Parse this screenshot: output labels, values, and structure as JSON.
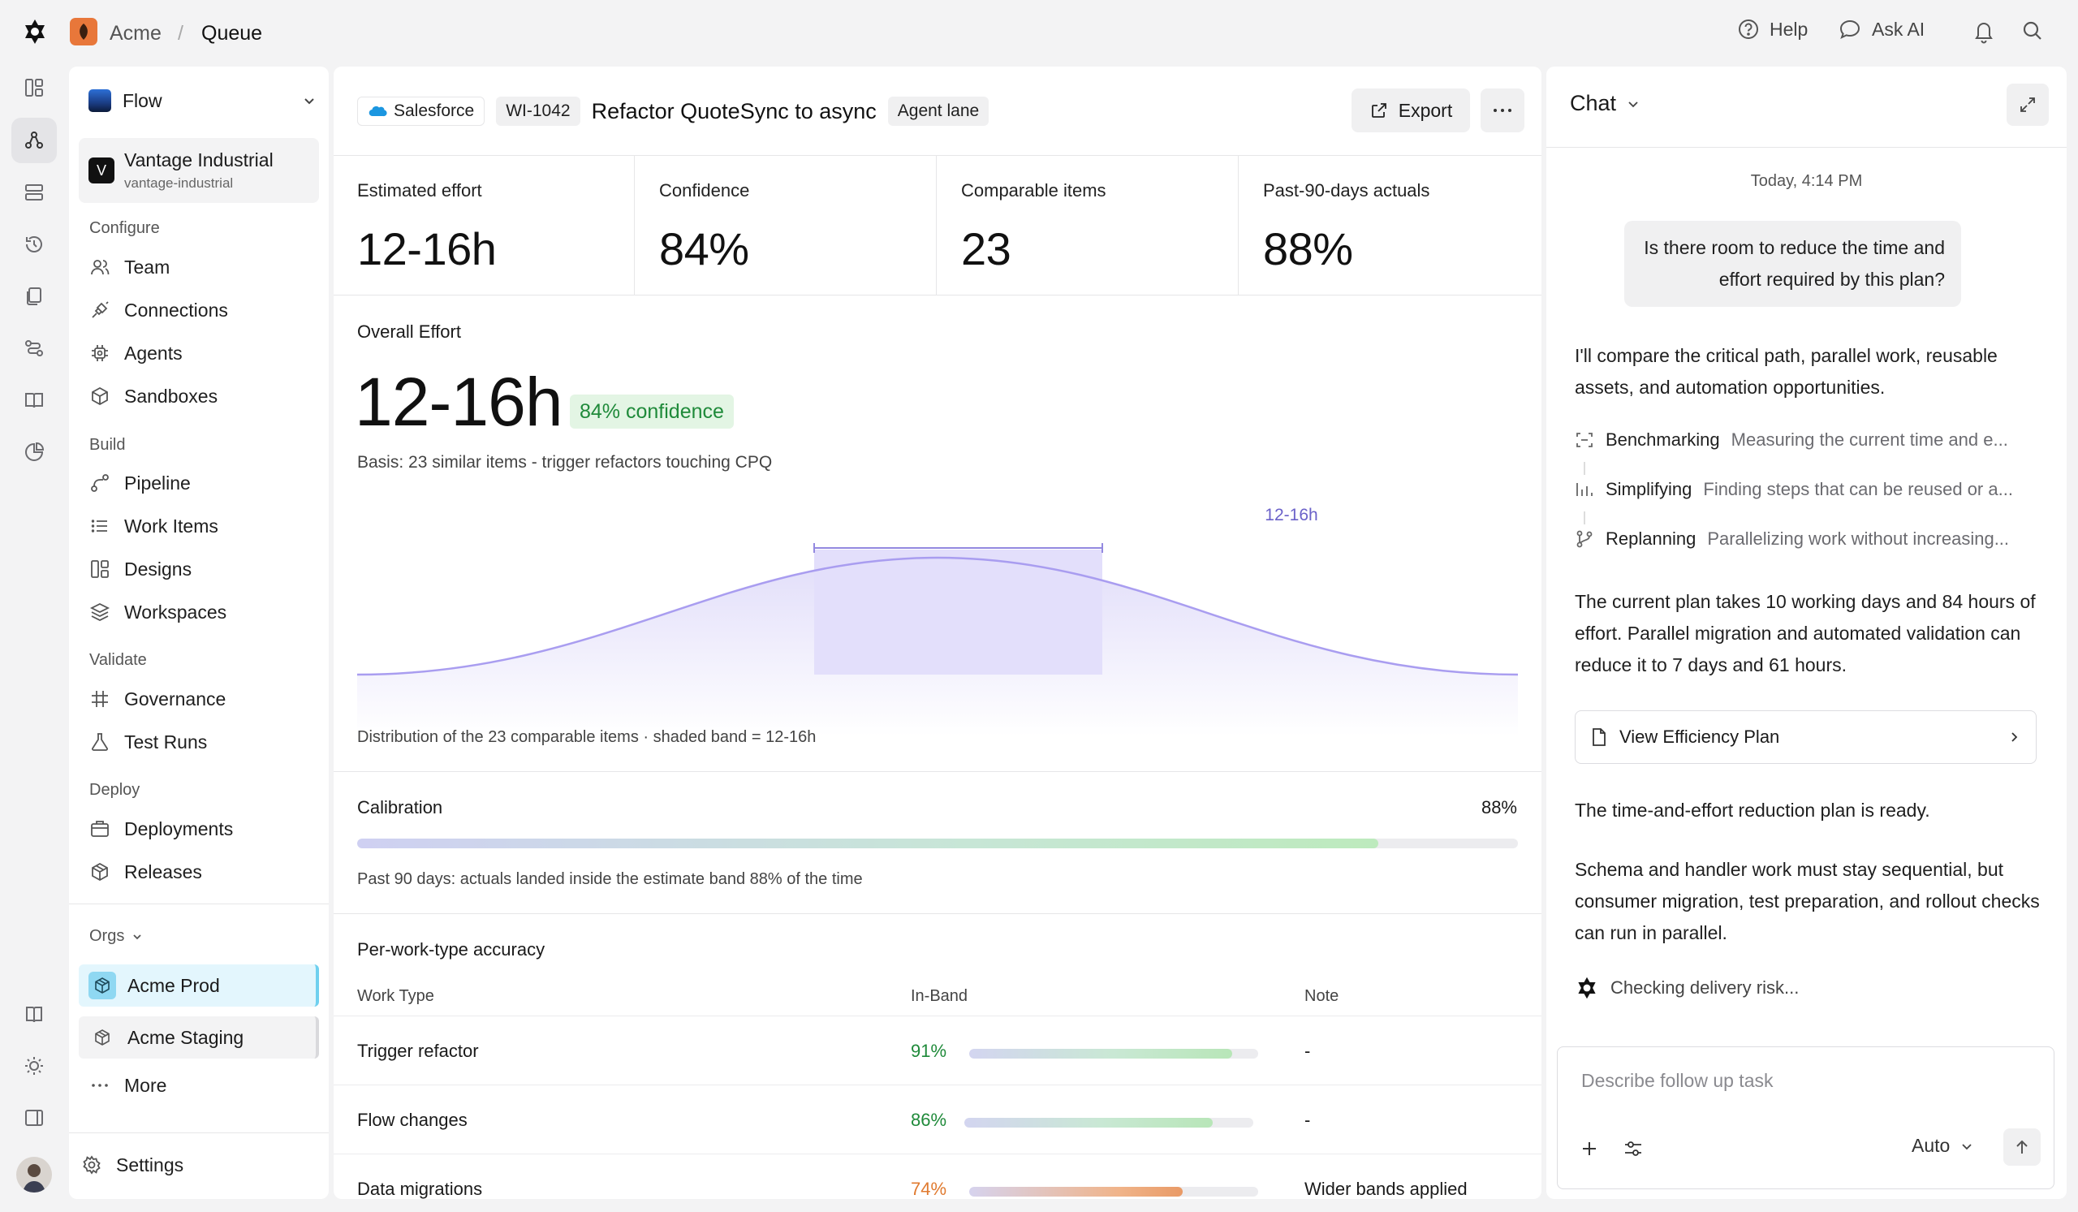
{
  "topbar": {
    "org": "Acme",
    "separator": "/",
    "page": "Queue",
    "help": "Help",
    "ask_ai": "Ask AI"
  },
  "sidebar": {
    "workspace": "Flow",
    "account_initial": "V",
    "account_name": "Vantage Industrial",
    "account_slug": "vantage-industrial",
    "sections": {
      "configure": "Configure",
      "build": "Build",
      "validate": "Validate",
      "deploy": "Deploy"
    },
    "items": {
      "team": "Team",
      "connections": "Connections",
      "agents": "Agents",
      "sandboxes": "Sandboxes",
      "pipeline": "Pipeline",
      "work_items": "Work Items",
      "designs": "Designs",
      "workspaces": "Workspaces",
      "governance": "Governance",
      "test_runs": "Test Runs",
      "deployments": "Deployments",
      "releases": "Releases"
    },
    "orgs_label": "Orgs",
    "orgs": [
      "Acme Prod",
      "Acme Staging"
    ],
    "more": "More",
    "settings": "Settings"
  },
  "main": {
    "source": "Salesforce",
    "item_id": "WI-1042",
    "title": "Refactor QuoteSync to async",
    "lane": "Agent lane",
    "export": "Export",
    "stats": [
      {
        "label": "Estimated effort",
        "value": "12-16h"
      },
      {
        "label": "Confidence",
        "value": "84%"
      },
      {
        "label": "Comparable items",
        "value": "23"
      },
      {
        "label": "Past-90-days actuals",
        "value": "88%"
      }
    ],
    "overall": {
      "label": "Overall Effort",
      "value": "12-16h",
      "confidence": "84% confidence",
      "basis": "Basis: 23 similar items - trigger refactors touching CPQ",
      "band_label": "12-16h",
      "caption": "Distribution of the 23 comparable items · shaded band = 12-16h"
    },
    "calibration": {
      "label": "Calibration",
      "value": "88%",
      "fill": 0.88,
      "caption": "Past 90 days: actuals landed inside the estimate band 88% of the time"
    },
    "accuracy": {
      "title": "Per-work-type accuracy",
      "headers": [
        "Work Type",
        "In-Band",
        "Note"
      ],
      "rows": [
        {
          "type": "Trigger refactor",
          "pct": "91%",
          "fill": 0.91,
          "note": "-",
          "color": "#1f8a3a"
        },
        {
          "type": "Flow changes",
          "pct": "86%",
          "fill": 0.86,
          "note": "-",
          "color": "#1f8a3a"
        },
        {
          "type": "Data migrations",
          "pct": "74%",
          "fill": 0.74,
          "note": "Wider bands applied",
          "color": "#e07a2f"
        }
      ]
    }
  },
  "chat": {
    "title": "Chat",
    "timestamp": "Today, 4:14 PM",
    "user_msg": "Is there room to reduce the time and effort required by this plan?",
    "reply_1": "I'll compare the critical path, parallel work, reusable assets, and automation opportunities.",
    "steps": [
      {
        "title": "Benchmarking",
        "desc": "Measuring the current time and e...",
        "icon": "scan-icon"
      },
      {
        "title": "Simplifying",
        "desc": "Finding steps that can be reused or a...",
        "icon": "bars-icon"
      },
      {
        "title": "Replanning",
        "desc": "Parallelizing work without increasing...",
        "icon": "branch-icon"
      }
    ],
    "reply_2": "The current plan takes 10 working days and 84 hours of effort. Parallel migration and automated validation can reduce it to 7 days and 61 hours.",
    "plan_button": "View Efficiency Plan",
    "reply_3": "The time-and-effort reduction plan is ready.",
    "reply_4": "Schema and handler work must stay sequential, but consumer migration, test preparation, and rollout checks can run in parallel.",
    "status": "Checking delivery risk...",
    "input_placeholder": "Describe follow up task",
    "mode": "Auto"
  }
}
